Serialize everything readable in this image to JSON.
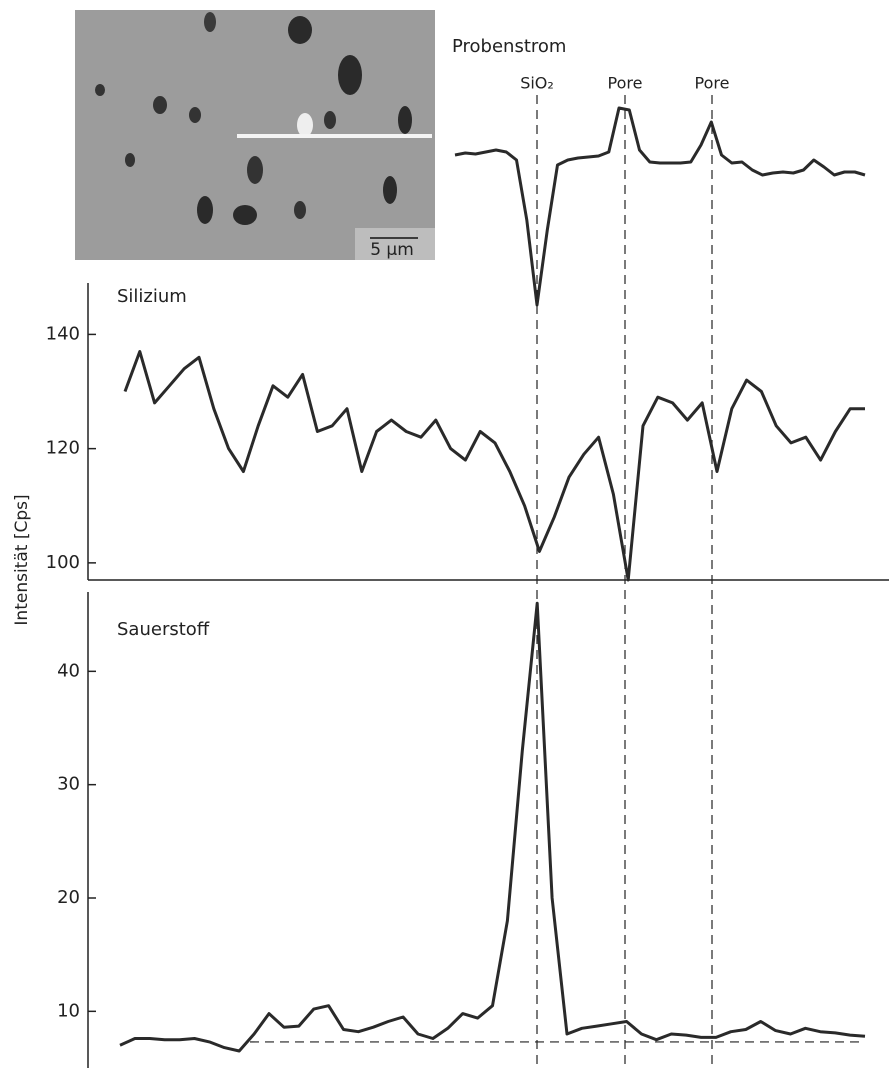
{
  "image": {
    "scale_label": "5 µm"
  },
  "y_axis_label": "Intensität [Cps]",
  "chart_data": [
    {
      "type": "line",
      "title": "Probenstrom",
      "markers": [
        "SiO₂",
        "Pore",
        "Pore"
      ],
      "ylim": [
        0,
        210
      ],
      "values": [
        155,
        157,
        156,
        158,
        160,
        158,
        150,
        90,
        5,
        80,
        145,
        150,
        152,
        153,
        154,
        158,
        202,
        200,
        160,
        148,
        147,
        147,
        147,
        148,
        165,
        188,
        155,
        147,
        148,
        140,
        135,
        137,
        138,
        137,
        140,
        150,
        143,
        135,
        138,
        138,
        135
      ]
    },
    {
      "type": "line",
      "title": "Silizium",
      "ylim": [
        97,
        149
      ],
      "yticks": [
        100,
        120,
        140
      ],
      "values": [
        130,
        137,
        128,
        131,
        134,
        136,
        127,
        120,
        116,
        124,
        131,
        129,
        133,
        123,
        124,
        127,
        116,
        123,
        125,
        123,
        122,
        125,
        120,
        118,
        123,
        121,
        116,
        110,
        102,
        108,
        115,
        119,
        122,
        112,
        97,
        124,
        129,
        128,
        125,
        128,
        116,
        127,
        132,
        130,
        124,
        121,
        122,
        118,
        123,
        127,
        127
      ]
    },
    {
      "type": "line",
      "title": "Sauerstoff",
      "ylim": [
        5,
        47
      ],
      "yticks": [
        10,
        20,
        30,
        40
      ],
      "baseline": 7.3,
      "values": [
        7.0,
        7.6,
        7.6,
        7.5,
        7.5,
        7.6,
        7.3,
        6.8,
        6.5,
        8.0,
        9.8,
        8.6,
        8.7,
        10.2,
        10.5,
        8.4,
        8.2,
        8.6,
        9.1,
        9.5,
        8.0,
        7.6,
        8.5,
        9.8,
        9.4,
        10.5,
        18,
        33,
        46,
        20,
        8.0,
        8.5,
        8.7,
        8.9,
        9.1,
        8.0,
        7.5,
        8.0,
        7.9,
        7.7,
        7.7,
        8.2,
        8.4,
        9.1,
        8.3,
        8.0,
        8.5,
        8.2,
        8.1,
        7.9,
        7.8
      ]
    }
  ]
}
